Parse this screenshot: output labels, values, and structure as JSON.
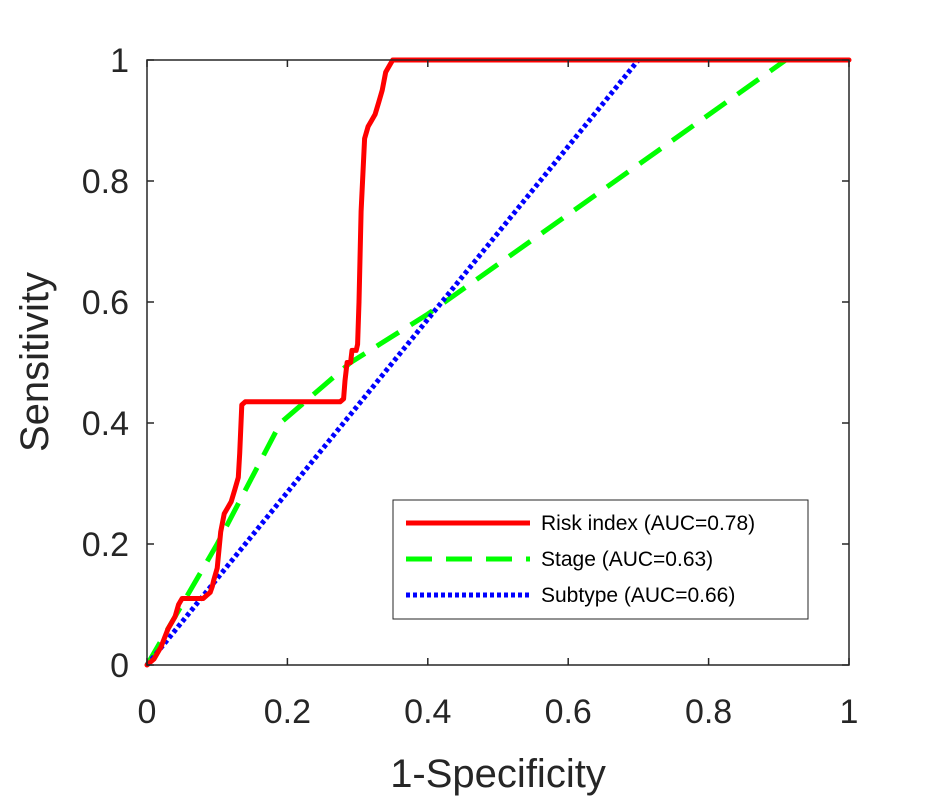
{
  "chart_data": {
    "type": "line",
    "xlabel": "1-Specificity",
    "ylabel": "Sensitivity",
    "xlim": [
      0,
      1
    ],
    "ylim": [
      0,
      1
    ],
    "xticks": [
      0,
      0.2,
      0.4,
      0.6,
      0.8,
      1
    ],
    "yticks": [
      0,
      0.2,
      0.4,
      0.6,
      0.8,
      1
    ],
    "xtick_labels": [
      "0",
      "0.2",
      "0.4",
      "0.6",
      "0.8",
      "1"
    ],
    "ytick_labels": [
      "0",
      "0.2",
      "0.4",
      "0.6",
      "0.8",
      "1"
    ],
    "grid": false,
    "legend_position": "bottom-right",
    "series": [
      {
        "name": "Risk index (AUC=0.78)",
        "color": "#ff0000",
        "style": "solid",
        "x": [
          0,
          0.01,
          0.02,
          0.03,
          0.04,
          0.045,
          0.05,
          0.07,
          0.08,
          0.085,
          0.09,
          0.093,
          0.095,
          0.1,
          0.105,
          0.11,
          0.12,
          0.125,
          0.13,
          0.132,
          0.135,
          0.14,
          0.2,
          0.26,
          0.275,
          0.28,
          0.282,
          0.285,
          0.29,
          0.292,
          0.295,
          0.298,
          0.3,
          0.302,
          0.305,
          0.31,
          0.315,
          0.32,
          0.325,
          0.33,
          0.335,
          0.34,
          0.345,
          0.35,
          0.355,
          0.4,
          0.6,
          0.8,
          1
        ],
        "y": [
          0,
          0.01,
          0.03,
          0.06,
          0.08,
          0.1,
          0.11,
          0.11,
          0.11,
          0.115,
          0.12,
          0.13,
          0.14,
          0.16,
          0.22,
          0.25,
          0.27,
          0.29,
          0.31,
          0.35,
          0.43,
          0.435,
          0.435,
          0.435,
          0.435,
          0.44,
          0.47,
          0.5,
          0.5,
          0.52,
          0.52,
          0.52,
          0.53,
          0.6,
          0.75,
          0.87,
          0.89,
          0.9,
          0.91,
          0.93,
          0.95,
          0.98,
          0.99,
          1.0,
          1.0,
          1.0,
          1.0,
          1.0,
          1.0
        ]
      },
      {
        "name": "Stage (AUC=0.63)",
        "color": "#00ff00",
        "style": "dashed",
        "x": [
          0,
          0.1,
          0.19,
          0.29,
          0.4,
          0.91,
          1
        ],
        "y": [
          0,
          0.2,
          0.4,
          0.5,
          0.58,
          1.0,
          1.0
        ]
      },
      {
        "name": "Subtype (AUC=0.66)",
        "color": "#0000ff",
        "style": "dotted",
        "x": [
          0,
          0.7,
          1
        ],
        "y": [
          0,
          1.0,
          1.0
        ]
      }
    ]
  }
}
